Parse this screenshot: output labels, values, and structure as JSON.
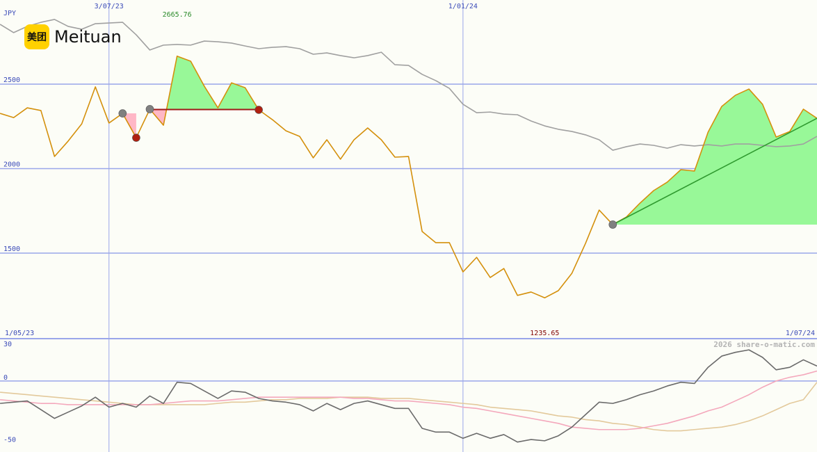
{
  "header": {
    "logo_mark": "美团",
    "name": "Meituan"
  },
  "watermark": "2026 share-o-matic.com",
  "chart_data": [
    {
      "type": "line",
      "y_label": "JPY",
      "x": [
        "2023-05-08",
        "2023-05-15",
        "2023-05-22",
        "2023-05-29",
        "2023-06-05",
        "2023-06-12",
        "2023-06-19",
        "2023-06-26",
        "2023-07-03",
        "2023-07-10",
        "2023-07-17",
        "2023-07-24",
        "2023-07-31",
        "2023-08-07",
        "2023-08-14",
        "2023-08-21",
        "2023-08-28",
        "2023-09-04",
        "2023-09-11",
        "2023-09-18",
        "2023-09-25",
        "2023-10-02",
        "2023-10-09",
        "2023-10-16",
        "2023-10-23",
        "2023-10-30",
        "2023-11-06",
        "2023-11-13",
        "2023-11-20",
        "2023-11-27",
        "2023-12-04",
        "2023-12-11",
        "2023-12-18",
        "2023-12-25",
        "2024-01-01",
        "2024-01-08",
        "2024-01-15",
        "2024-01-22",
        "2024-01-29",
        "2024-02-05",
        "2024-02-12",
        "2024-02-19",
        "2024-02-26",
        "2024-03-04",
        "2024-03-11",
        "2024-03-18",
        "2024-03-25",
        "2024-04-01",
        "2024-04-08",
        "2024-04-15",
        "2024-04-22",
        "2024-04-29",
        "2024-05-06",
        "2024-05-13",
        "2024-05-20",
        "2024-05-27",
        "2024-06-03",
        "2024-06-10",
        "2024-06-17",
        "2024-06-24",
        "2024-07-01"
      ],
      "series": [
        {
          "color": "#a0a0a0",
          "values": [
            2854,
            2805,
            2842,
            2866,
            2883,
            2842,
            2825,
            2858,
            2862,
            2866,
            2792,
            2702,
            2731,
            2735,
            2731,
            2755,
            2751,
            2743,
            2726,
            2710,
            2718,
            2722,
            2710,
            2677,
            2685,
            2669,
            2656,
            2669,
            2689,
            2615,
            2611,
            2558,
            2521,
            2475,
            2381,
            2331,
            2335,
            2323,
            2319,
            2282,
            2253,
            2233,
            2220,
            2200,
            2171,
            2109,
            2130,
            2146,
            2138,
            2121,
            2142,
            2134,
            2142,
            2134,
            2146,
            2146,
            2138,
            2130,
            2134,
            2146,
            2191
          ]
        },
        {
          "color": "#d4900c",
          "values": [
            2327,
            2302,
            2360,
            2344,
            2072,
            2163,
            2265,
            2484,
            2270,
            2327,
            2183,
            2352,
            2257,
            2665.76,
            2636,
            2488,
            2360,
            2508,
            2479,
            2348,
            2290,
            2224,
            2191,
            2064,
            2171,
            2056,
            2171,
            2241,
            2171,
            2068,
            2072,
            1628,
            1562,
            1562,
            1389,
            1475,
            1356,
            1409,
            1250,
            1270,
            1235.65,
            1278,
            1381,
            1558,
            1755,
            1669,
            1714,
            1796,
            1870,
            1920,
            1994,
            1986,
            2216,
            2368,
            2434,
            2471,
            2381,
            2187,
            2220,
            2352,
            2298
          ]
        }
      ],
      "xlim": [
        {
          "value": "2023-05-01",
          "label": "1/05/23"
        },
        {
          "value": "2024-07-01",
          "label": "1/07/24"
        }
      ],
      "xticks": [
        {
          "value": "2023-07-03",
          "label": "3/07/23"
        },
        {
          "value": "2024-01-01",
          "label": "1/01/24"
        }
      ],
      "ylim": [
        994,
        2998
      ],
      "yticks": [
        2500,
        2000,
        1500
      ],
      "grid": true,
      "grid_color": "#9aa6ea",
      "high": 2665.76,
      "high_color": "#2a8a2a",
      "low": 1235.65,
      "low_color": "#800000",
      "fill_colors": {
        "above": "#98f898",
        "below": "#ffb7c6"
      },
      "regions": [
        {
          "from": "2023-07-10",
          "to": "2023-07-17",
          "level": 2327
        },
        {
          "from": "2023-07-24",
          "to": "2023-09-18",
          "level": 2350,
          "line_color": "#a01818"
        },
        {
          "from": "2024-03-18",
          "to": "2024-07-01",
          "level": 1669,
          "trend": [
            1669,
            2298
          ],
          "trend_color": "#2f9a2f"
        }
      ],
      "markers": [
        {
          "x": "2023-07-10",
          "color": "#808080"
        },
        {
          "x": "2023-07-17",
          "color": "#b02010"
        },
        {
          "x": "2023-07-24",
          "color": "#808080"
        },
        {
          "x": "2023-09-18",
          "color": "#b02010"
        },
        {
          "x": "2024-03-18",
          "color": "#808080"
        }
      ]
    },
    {
      "type": "line",
      "series": [
        {
          "color": "#e3c99b",
          "values": [
            -9,
            -10,
            -11,
            -12,
            -13,
            -14,
            -15,
            -16,
            -17,
            -18,
            -19,
            -19,
            -19,
            -19,
            -19,
            -19,
            -18,
            -17,
            -17,
            -16,
            -15,
            -15,
            -14,
            -14,
            -14,
            -13,
            -13,
            -13,
            -14,
            -14,
            -14,
            -15,
            -16,
            -17,
            -18,
            -19,
            -21,
            -22,
            -23,
            -24,
            -26,
            -28,
            -29,
            -31,
            -32,
            -34,
            -35,
            -37,
            -39,
            -40,
            -40,
            -39,
            -38,
            -37,
            -35,
            -32,
            -28,
            -23,
            -18,
            -15,
            -1
          ]
        },
        {
          "color": "#f4a8bc",
          "values": [
            -15,
            -16,
            -17,
            -18,
            -18,
            -19,
            -19,
            -19,
            -19,
            -19,
            -19,
            -19,
            -18,
            -17,
            -16,
            -16,
            -16,
            -15,
            -14,
            -13,
            -13,
            -13,
            -13,
            -13,
            -13,
            -13,
            -14,
            -14,
            -15,
            -16,
            -16,
            -17,
            -18,
            -19,
            -21,
            -22,
            -24,
            -26,
            -28,
            -30,
            -32,
            -34,
            -37,
            -38,
            -39,
            -39,
            -39,
            -38,
            -36,
            -34,
            -31,
            -28,
            -24,
            -21,
            -16,
            -11,
            -5,
            0,
            3,
            5,
            8
          ]
        },
        {
          "color": "#6a6a6a",
          "values": [
            -18,
            -17,
            -16,
            -23,
            -30,
            -25,
            -20,
            -13,
            -21,
            -18,
            -21,
            -12,
            -18,
            -1,
            -2,
            -8,
            -14,
            -8,
            -9,
            -14,
            -16,
            -17,
            -19,
            -24,
            -18,
            -23,
            -18,
            -16,
            -19,
            -22,
            -22,
            -38,
            -41,
            -41,
            -46,
            -42,
            -46,
            -43,
            -49,
            -47,
            -48,
            -44,
            -37,
            -27,
            -17,
            -18,
            -15,
            -11,
            -8,
            -4,
            -1,
            -2,
            11,
            20,
            23,
            25,
            19,
            9,
            11,
            17,
            12
          ]
        }
      ],
      "ylim": [
        -57,
        34
      ],
      "yticks": [
        30,
        0,
        -50
      ],
      "zero_line": true
    }
  ]
}
